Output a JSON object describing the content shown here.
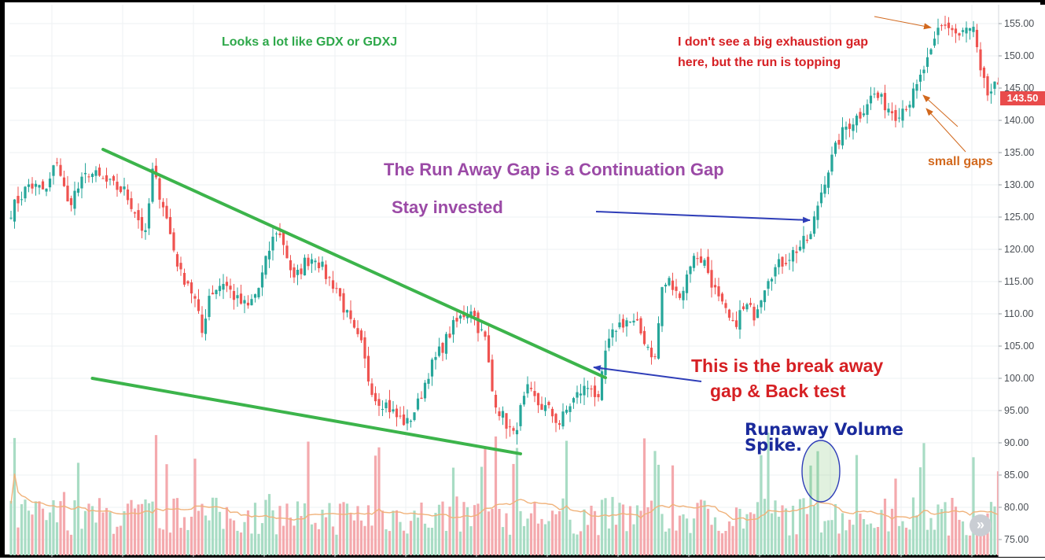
{
  "annotations": {
    "gdx": "Looks a lot like GDX  or GDXJ",
    "exhaustion_line1": "I don't see a big exhaustion gap",
    "exhaustion_line2": "here, but the run is topping",
    "small_gaps": "small gaps",
    "runaway_gap": "The Run Away Gap is a Continuation Gap",
    "stay_invested": "Stay invested",
    "breakaway_line1": "This is the break away",
    "breakaway_line2": "gap & Back test",
    "volume_line1": "Runaway Volume",
    "volume_line2": "Spike."
  },
  "price_tag": "143.50",
  "nav_button": "»",
  "colors": {
    "up": "#26a69a",
    "down": "#ef5350",
    "vol_up": "#a8dcc4",
    "vol_down": "#f4a9ad",
    "ma": "#f0b27a",
    "trendline": "#3cb44b",
    "arrow": "#2e3db8",
    "orange_arrow": "#d2691e",
    "grid": "#eef0f3"
  },
  "chart_data": {
    "type": "candlestick",
    "title": "",
    "y_axis_side": "right",
    "ylim": [
      73,
      157
    ],
    "ytick_labels": [
      "155.00",
      "150.00",
      "145.00",
      "140.00",
      "135.00",
      "130.00",
      "125.00",
      "120.00",
      "115.00",
      "110.00",
      "105.00",
      "100.00",
      "95.00",
      "90.00",
      "85.00",
      "80.00",
      "75.00"
    ],
    "ytick_values": [
      155,
      150,
      145,
      140,
      135,
      130,
      125,
      120,
      115,
      110,
      105,
      100,
      95,
      90,
      85,
      80,
      75
    ],
    "last_price": 143.5,
    "price_path": [
      [
        0,
        126
      ],
      [
        5,
        130
      ],
      [
        10,
        129
      ],
      [
        13,
        134
      ],
      [
        16,
        127
      ],
      [
        22,
        132
      ],
      [
        28,
        130
      ],
      [
        32,
        129
      ],
      [
        35,
        126
      ],
      [
        38,
        122
      ],
      [
        40,
        132
      ],
      [
        43,
        127
      ],
      [
        46,
        120
      ],
      [
        48,
        116
      ],
      [
        50,
        115
      ],
      [
        52,
        112
      ],
      [
        54,
        107
      ],
      [
        56,
        113
      ],
      [
        60,
        115
      ],
      [
        64,
        112
      ],
      [
        67,
        111
      ],
      [
        70,
        114
      ],
      [
        73,
        120
      ],
      [
        75,
        123
      ],
      [
        77,
        121
      ],
      [
        80,
        115
      ],
      [
        83,
        118
      ],
      [
        86,
        119
      ],
      [
        89,
        116
      ],
      [
        92,
        114
      ],
      [
        94,
        111
      ],
      [
        97,
        107
      ],
      [
        99,
        105
      ],
      [
        101,
        100
      ],
      [
        103,
        97
      ],
      [
        106,
        96
      ],
      [
        109,
        94
      ],
      [
        112,
        93
      ],
      [
        115,
        96
      ],
      [
        118,
        101
      ],
      [
        120,
        103
      ],
      [
        123,
        106
      ],
      [
        125,
        108
      ],
      [
        128,
        110
      ],
      [
        130,
        111
      ],
      [
        132,
        108
      ],
      [
        134,
        106
      ],
      [
        136,
        98
      ],
      [
        138,
        95
      ],
      [
        140,
        93
      ],
      [
        142,
        91
      ],
      [
        144,
        95
      ],
      [
        146,
        98
      ],
      [
        149,
        96
      ],
      [
        152,
        95
      ],
      [
        155,
        93
      ],
      [
        158,
        96
      ],
      [
        161,
        98
      ],
      [
        164,
        99
      ],
      [
        166,
        96
      ],
      [
        168,
        104
      ],
      [
        171,
        108
      ],
      [
        174,
        109
      ],
      [
        177,
        108
      ],
      [
        180,
        105
      ],
      [
        182,
        103
      ],
      [
        184,
        114
      ],
      [
        186,
        115
      ],
      [
        188,
        113
      ],
      [
        190,
        114
      ],
      [
        192,
        118
      ],
      [
        194,
        119
      ],
      [
        196,
        118
      ],
      [
        198,
        115
      ],
      [
        200,
        112
      ],
      [
        202,
        110
      ],
      [
        204,
        108
      ],
      [
        206,
        110
      ],
      [
        208,
        111
      ],
      [
        210,
        110
      ],
      [
        212,
        113
      ],
      [
        214,
        116
      ],
      [
        216,
        117
      ],
      [
        218,
        118
      ],
      [
        220,
        119
      ],
      [
        222,
        120
      ],
      [
        224,
        121
      ],
      [
        226,
        122
      ],
      [
        228,
        127
      ],
      [
        230,
        131
      ],
      [
        232,
        134
      ],
      [
        234,
        137
      ],
      [
        236,
        139
      ],
      [
        238,
        140
      ],
      [
        240,
        141
      ],
      [
        242,
        143
      ],
      [
        244,
        144
      ],
      [
        246,
        143
      ],
      [
        248,
        142
      ],
      [
        250,
        141
      ],
      [
        252,
        142
      ],
      [
        254,
        143
      ],
      [
        256,
        145
      ],
      [
        258,
        148
      ],
      [
        260,
        150
      ],
      [
        262,
        154
      ],
      [
        264,
        155
      ],
      [
        266,
        154
      ],
      [
        268,
        153
      ],
      [
        270,
        154
      ],
      [
        272,
        154
      ],
      [
        274,
        147
      ],
      [
        276,
        144
      ],
      [
        278,
        145
      ],
      [
        280,
        144
      ],
      [
        282,
        143.5
      ]
    ],
    "trendlines": [
      {
        "name": "upper",
        "from": [
          26,
          135.5
        ],
        "to": [
          168,
          100.1
        ]
      },
      {
        "name": "lower",
        "from": [
          23,
          100.0
        ],
        "to": [
          144,
          88.3
        ]
      }
    ],
    "volume": "relative bars along bottom with moving-average line"
  }
}
